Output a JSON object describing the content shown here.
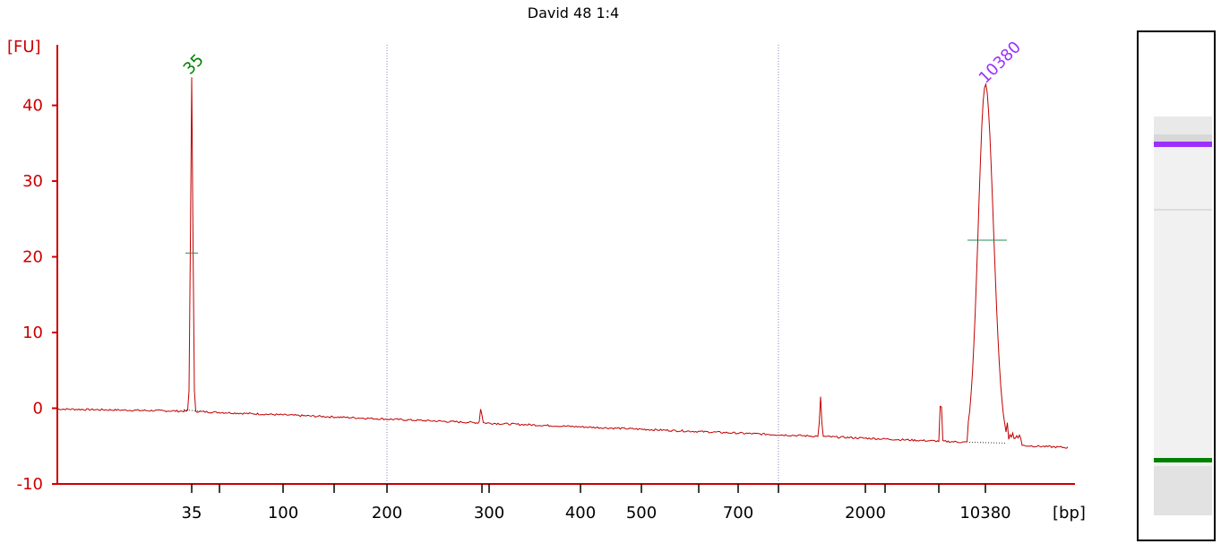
{
  "chart_data": {
    "type": "line",
    "title": "David 48 1:4",
    "ylabel": "[FU]",
    "xlabel": "[bp]",
    "ylim": [
      -10,
      48
    ],
    "yticks": [
      -10,
      0,
      10,
      20,
      30,
      40
    ],
    "xticks_labeled": [
      "35",
      "100",
      "200",
      "300",
      "400",
      "500",
      "700",
      "2000",
      "10380"
    ],
    "xticks_unlabeled_count": 7,
    "peaks": [
      {
        "label": "35",
        "color": "#008000",
        "height": 44.5
      },
      {
        "label": "10380",
        "color": "#9b30ff",
        "height": 43
      }
    ],
    "series": [
      {
        "color": "#c00000",
        "points": [
          [
            "0",
            -0.1
          ],
          [
            "35",
            -0.3
          ],
          [
            "35",
            44.5
          ],
          [
            "35",
            40
          ],
          [
            "35",
            -0.4
          ],
          [
            "100",
            -0.8
          ],
          [
            "200",
            -1.8
          ],
          [
            "300",
            -2.4
          ],
          [
            "300",
            -0.2
          ],
          [
            "300",
            -2.5
          ],
          [
            "400",
            -2.9
          ],
          [
            "500",
            -3.2
          ],
          [
            "700",
            -3.5
          ],
          [
            "2000",
            -4.2
          ],
          [
            "2000",
            1
          ],
          [
            "2000",
            -4.5
          ],
          [
            "10380",
            -4.5
          ],
          [
            "10380",
            43
          ],
          [
            "10380",
            -2.5
          ],
          [
            "[bp]",
            -5.2
          ]
        ]
      }
    ],
    "gel_bands": [
      {
        "color": "#9b30ff",
        "marker": "10380"
      },
      {
        "color": "#008000",
        "marker": "35"
      }
    ]
  },
  "colors": {
    "axis": "#cc0000",
    "trace": "#c00000",
    "grid": "#8080c0",
    "marker_line": "#2e8b57"
  }
}
